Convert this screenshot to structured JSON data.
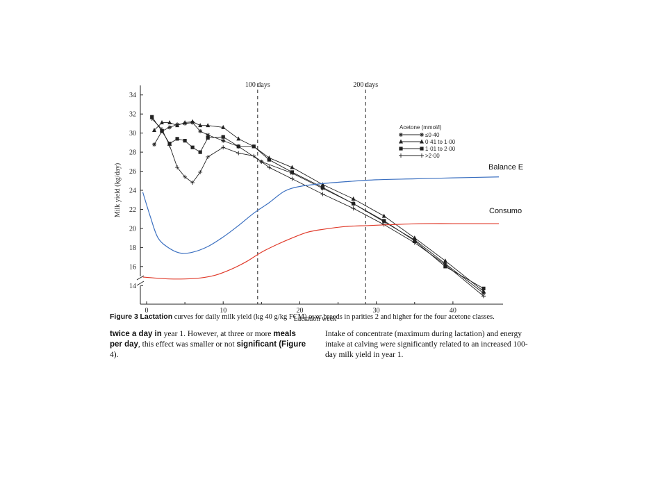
{
  "caption": {
    "label": "Figure 3",
    "label_word": "Lactation",
    "text": "curves for daily milk yield (kg 40 g/kg FCM) over breeds in parities 2 and higher for the four acetone classes."
  },
  "body_text": {
    "left": [
      {
        "text": "twice a day in",
        "bold": true
      },
      {
        "text": " year 1. However, at three or more ",
        "bold": false
      },
      {
        "text": "meals per day",
        "bold": true
      },
      {
        "text": ", this effect was smaller or not ",
        "bold": false
      },
      {
        "text": "significant (Figure",
        "bold": true
      },
      {
        "text": " 4).",
        "bold": false
      }
    ],
    "right": "Intake of concentrate (maximum during lactation) and energy intake at calving were significantly related to an increased 100-day milk yield in year 1."
  },
  "overlay_labels": {
    "balance": "Balance E",
    "consumo": "Consumo"
  },
  "colors": {
    "balance_line": "#3a6fc0",
    "consumo_line": "#e03a2a",
    "ink": "#222222"
  },
  "chart_data": {
    "type": "line",
    "title": "",
    "xlabel": "Lactation week",
    "ylabel": "Milk yield (kg/day)",
    "xlim": [
      0,
      45
    ],
    "ylim": [
      13,
      35
    ],
    "x_ticks": [
      0,
      10,
      20,
      30,
      40
    ],
    "y_ticks": [
      14,
      16,
      18,
      20,
      22,
      24,
      26,
      28,
      30,
      32,
      34
    ],
    "y_axis_break": true,
    "reference_lines": [
      {
        "x": 14.5,
        "label": "100 days",
        "style": "dashed"
      },
      {
        "x": 28.6,
        "label": "200 days",
        "style": "dashed"
      }
    ],
    "legend": {
      "title": "Acetone (mmol/l)",
      "position": "right",
      "entries": [
        "≤0·40",
        "0·41 to 1·00",
        "1·01 to 2·00",
        ">2·00"
      ]
    },
    "series": [
      {
        "name": "≤0·40",
        "marker": "asterisk",
        "x": [
          1,
          2,
          3,
          4,
          5,
          6,
          7,
          8,
          10,
          12,
          15,
          19,
          23,
          27,
          31,
          35,
          39,
          44
        ],
        "y": [
          28.8,
          30.2,
          30.6,
          30.9,
          31.0,
          31.1,
          30.2,
          29.8,
          29.2,
          28.6,
          27.0,
          25.8,
          24.2,
          22.6,
          20.7,
          18.8,
          16.3,
          13.2
        ]
      },
      {
        "name": "0·41 to 1·00",
        "marker": "triangle",
        "x": [
          1,
          2,
          3,
          4,
          5,
          6,
          7,
          8,
          10,
          12,
          14,
          16,
          19,
          23,
          27,
          31,
          35,
          39,
          44
        ],
        "y": [
          30.3,
          31.1,
          31.1,
          30.8,
          31.1,
          31.2,
          30.8,
          30.8,
          30.6,
          29.4,
          28.6,
          27.4,
          26.4,
          24.6,
          23.1,
          21.3,
          19.0,
          16.6,
          13.4
        ]
      },
      {
        "name": "1·01 to 2·00",
        "marker": "square",
        "x": [
          0.7,
          2,
          3,
          4,
          5,
          6,
          7,
          8,
          10,
          12,
          14,
          16,
          19,
          23,
          27,
          31,
          35,
          39,
          44
        ],
        "y": [
          31.7,
          30.2,
          28.9,
          29.4,
          29.2,
          28.5,
          28.0,
          29.5,
          29.6,
          28.6,
          28.6,
          27.2,
          25.9,
          24.3,
          22.6,
          20.8,
          18.7,
          16.0,
          13.7
        ]
      },
      {
        "name": ">2·00",
        "marker": "plus",
        "x": [
          0.7,
          2,
          3,
          4,
          5,
          6,
          7,
          8,
          10,
          12,
          14,
          16,
          19,
          23,
          27,
          31,
          35,
          39,
          44
        ],
        "y": [
          31.5,
          30.4,
          28.7,
          26.4,
          25.4,
          24.8,
          25.9,
          27.5,
          28.5,
          27.9,
          27.6,
          26.4,
          25.2,
          23.6,
          22.1,
          20.4,
          18.5,
          16.2,
          12.9
        ]
      },
      {
        "name": "Balance E",
        "marker": "none",
        "color": "#3a6fc0",
        "x": [
          -0.5,
          0.5,
          1.5,
          3,
          4.5,
          6,
          8,
          10,
          12,
          14,
          16,
          18,
          20,
          23,
          26,
          30,
          35,
          40,
          46
        ],
        "y": [
          23.8,
          21.2,
          19.0,
          17.9,
          17.4,
          17.5,
          18.1,
          19.1,
          20.3,
          21.6,
          22.7,
          23.9,
          24.4,
          24.7,
          24.9,
          25.1,
          25.2,
          25.3,
          25.4
        ]
      },
      {
        "name": "Consumo",
        "marker": "none",
        "color": "#e03a2a",
        "x": [
          -0.5,
          1,
          3,
          5,
          7,
          9,
          11,
          13,
          15,
          17,
          19,
          21,
          23,
          26,
          29,
          32,
          36,
          40,
          46
        ],
        "y": [
          14.9,
          14.8,
          14.7,
          14.7,
          14.8,
          15.1,
          15.7,
          16.5,
          17.5,
          18.3,
          19.0,
          19.6,
          19.9,
          20.2,
          20.3,
          20.4,
          20.5,
          20.5,
          20.5
        ]
      }
    ]
  }
}
